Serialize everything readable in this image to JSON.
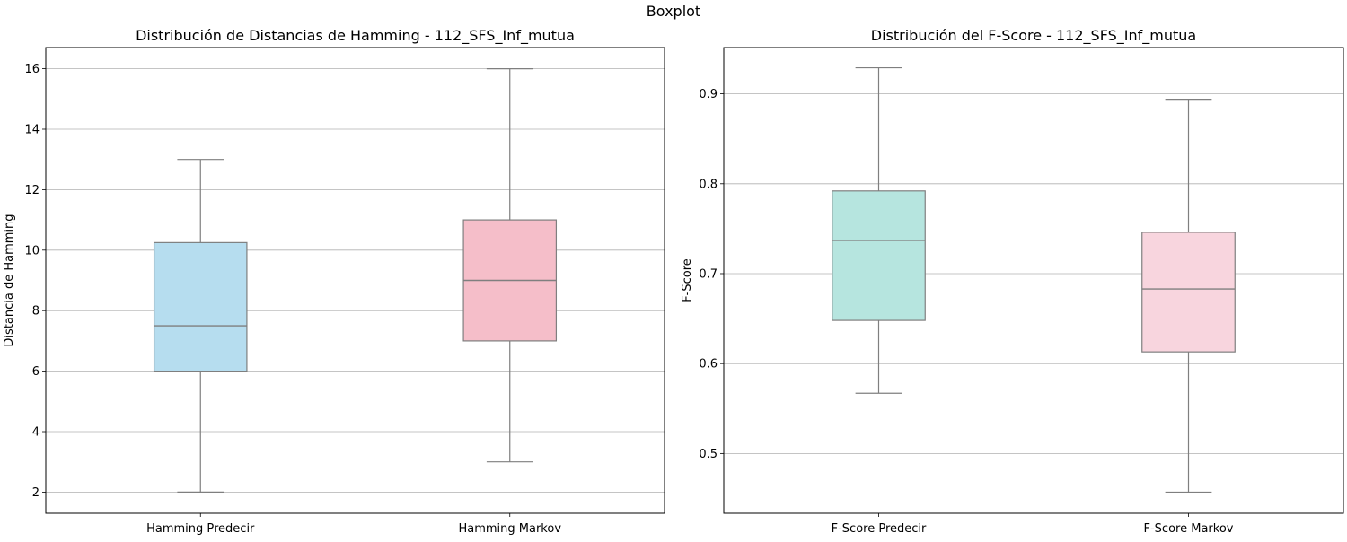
{
  "suptitle": "Boxplot",
  "chart_data": [
    {
      "type": "boxplot",
      "title": "Distribución de Distancias de Hamming - 112_SFS_Inf_mutua",
      "xlabel": "",
      "ylabel": "Distancia de Hamming",
      "ylim": [
        1.3,
        16.7
      ],
      "yticks": [
        2,
        4,
        6,
        8,
        10,
        12,
        14,
        16
      ],
      "grid": "horizontal",
      "categories": [
        "Hamming Predecir",
        "Hamming Markov"
      ],
      "boxes": [
        {
          "label": "Hamming Predecir",
          "whisker_low": 2,
          "q1": 6,
          "median": 7.5,
          "q3": 10.25,
          "whisker_high": 13,
          "color": "#b6ddef"
        },
        {
          "label": "Hamming Markov",
          "whisker_low": 3,
          "q1": 7,
          "median": 9,
          "q3": 11,
          "whisker_high": 16,
          "color": "#f5bec9"
        }
      ]
    },
    {
      "type": "boxplot",
      "title": "Distribución del F-Score - 112_SFS_Inf_mutua",
      "xlabel": "",
      "ylabel": "F-Score",
      "ylim": [
        0.4335,
        0.9515
      ],
      "yticks": [
        0.5,
        0.6,
        0.7,
        0.8,
        0.9
      ],
      "grid": "horizontal",
      "categories": [
        "F-Score Predecir",
        "F-Score Markov"
      ],
      "boxes": [
        {
          "label": "F-Score Predecir",
          "whisker_low": 0.567,
          "q1": 0.648,
          "median": 0.737,
          "q3": 0.792,
          "whisker_high": 0.929,
          "color": "#b6e5df"
        },
        {
          "label": "F-Score Markov",
          "whisker_low": 0.457,
          "q1": 0.613,
          "median": 0.683,
          "q3": 0.746,
          "whisker_high": 0.894,
          "color": "#f8d5de"
        }
      ]
    }
  ]
}
